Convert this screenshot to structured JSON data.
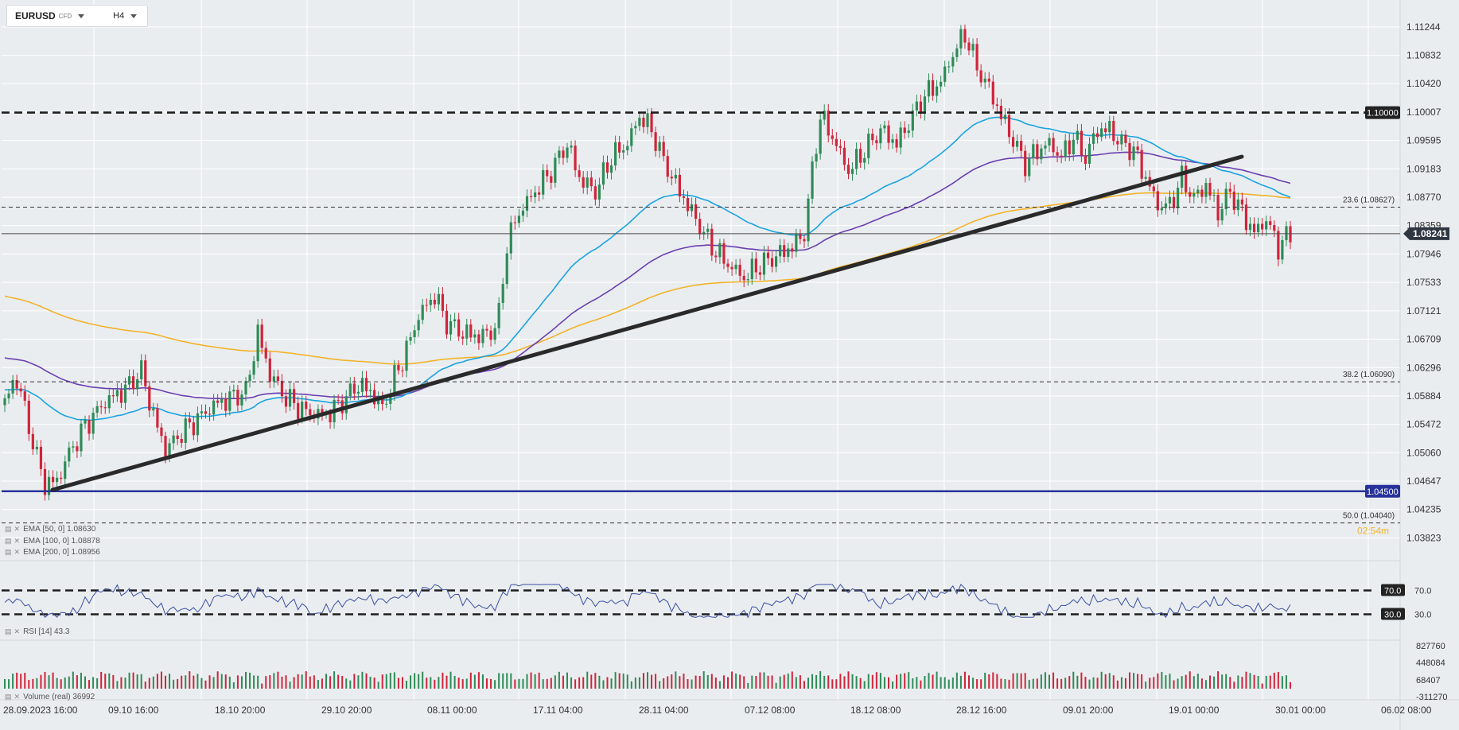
{
  "header": {
    "symbol": "EURUSD",
    "instrument_type": "CFD",
    "timeframe": "H4"
  },
  "colors": {
    "bg": "#eaedf0",
    "up": "#2e8b57",
    "down": "#d0243a",
    "ema50": "#1aa3e0",
    "ema100": "#6a3fb0",
    "ema200": "#f2b32a",
    "trendline": "#2a2a2a",
    "support": "#27329a",
    "rsi": "#3a4fa0"
  },
  "price_axis": {
    "ticks": [
      "1.11244",
      "1.10832",
      "1.10420",
      "1.10007",
      "1.09595",
      "1.09183",
      "1.08770",
      "1.08359",
      "1.07946",
      "1.07533",
      "1.07121",
      "1.06709",
      "1.06296",
      "1.05884",
      "1.05472",
      "1.05060",
      "1.04647",
      "1.04235",
      "1.03823"
    ],
    "current_price": "1.08241",
    "range": [
      1.0355,
      1.1152
    ]
  },
  "levels": [
    {
      "label": "1.10000",
      "value": 1.1,
      "style": "bold-dashed"
    },
    {
      "label": "23.6 (1.08627)",
      "value": 1.08627,
      "style": "thin-dashed"
    },
    {
      "label": "38.2 (1.06090)",
      "value": 1.0609,
      "style": "thin-dashed"
    },
    {
      "label": "50.0 (1.04040)",
      "value": 1.0404,
      "style": "thin-dashed"
    },
    {
      "label": "1.04500",
      "value": 1.045,
      "style": "solid-blue"
    }
  ],
  "countdown": "02:54m",
  "trendline": {
    "from": [
      "28.09.2023 16:00",
      1.0452
    ],
    "to": [
      "25.01 12:00",
      1.0936
    ]
  },
  "time_axis": [
    "28.09.2023  16:00",
    "09.10  16:00",
    "18.10  20:00",
    "29.10  20:00",
    "08.11  00:00",
    "17.11  04:00",
    "28.11  04:00",
    "07.12  08:00",
    "18.12  08:00",
    "28.12  16:00",
    "09.01  20:00",
    "19.01  00:00",
    "30.01  00:00",
    "06.02  08:00"
  ],
  "indicators": {
    "ema": [
      {
        "label": "EMA",
        "params": "[50, 0]",
        "value": "1.08630"
      },
      {
        "label": "EMA",
        "params": "[100, 0]",
        "value": "1.08878"
      },
      {
        "label": "EMA",
        "params": "[200, 0]",
        "value": "1.08956"
      }
    ],
    "rsi": {
      "label": "RSI",
      "params": "[14]",
      "value": "43.3",
      "levels": [
        "70.0",
        "30.0"
      ]
    },
    "volume": {
      "label": "Volume",
      "params": "(real)",
      "value": "36992",
      "ticks": [
        "827760",
        "448084",
        "68407",
        "-311270"
      ]
    }
  },
  "chart_data": {
    "type": "candlestick",
    "symbol": "EURUSD",
    "timeframe": "H4",
    "x_labels": [
      "28.09.2023 16:00",
      "09.10 16:00",
      "18.10 20:00",
      "29.10 20:00",
      "08.11 00:00",
      "17.11 04:00",
      "28.11 04:00",
      "07.12 08:00",
      "18.12 08:00",
      "28.12 16:00",
      "09.01 20:00",
      "19.01 00:00",
      "30.01 00:00",
      "06.02 08:00"
    ],
    "ylim": [
      1.0355,
      1.1152
    ],
    "close_path": [
      [
        0,
        1.058
      ],
      [
        3,
        1.0615
      ],
      [
        7,
        1.052
      ],
      [
        10,
        1.046
      ],
      [
        13,
        1.0465
      ],
      [
        16,
        1.0505
      ],
      [
        20,
        1.0545
      ],
      [
        25,
        1.058
      ],
      [
        30,
        1.0598
      ],
      [
        34,
        1.0625
      ],
      [
        37,
        1.056
      ],
      [
        40,
        1.051
      ],
      [
        44,
        1.0535
      ],
      [
        48,
        1.0555
      ],
      [
        52,
        1.0575
      ],
      [
        56,
        1.0585
      ],
      [
        60,
        1.0595
      ],
      [
        63,
        1.068
      ],
      [
        66,
        1.062
      ],
      [
        70,
        1.0585
      ],
      [
        75,
        1.0565
      ],
      [
        80,
        1.056
      ],
      [
        84,
        1.058
      ],
      [
        88,
        1.0605
      ],
      [
        91,
        1.0595
      ],
      [
        94,
        1.057
      ],
      [
        97,
        1.0615
      ],
      [
        100,
        1.0655
      ],
      [
        103,
        1.0705
      ],
      [
        107,
        1.0735
      ],
      [
        110,
        1.0695
      ],
      [
        114,
        1.068
      ],
      [
        118,
        1.0675
      ],
      [
        121,
        1.068
      ],
      [
        123,
        1.0705
      ],
      [
        125,
        1.081
      ],
      [
        128,
        1.0855
      ],
      [
        132,
        1.0885
      ],
      [
        136,
        1.0915
      ],
      [
        140,
        1.0955
      ],
      [
        143,
        1.0905
      ],
      [
        147,
        1.0885
      ],
      [
        151,
        1.0935
      ],
      [
        155,
        1.0955
      ],
      [
        158,
        1.0995
      ],
      [
        161,
        1.0975
      ],
      [
        164,
        1.093
      ],
      [
        168,
        1.0885
      ],
      [
        172,
        1.0845
      ],
      [
        176,
        1.0805
      ],
      [
        180,
        1.078
      ],
      [
        184,
        1.076
      ],
      [
        187,
        1.0775
      ],
      [
        190,
        1.0785
      ],
      [
        193,
        1.0795
      ],
      [
        196,
        1.0805
      ],
      [
        199,
        1.0825
      ],
      [
        201,
        1.0915
      ],
      [
        203,
        1.0995
      ],
      [
        206,
        1.0965
      ],
      [
        210,
        1.0915
      ],
      [
        214,
        1.0945
      ],
      [
        218,
        1.0975
      ],
      [
        222,
        1.0955
      ],
      [
        225,
        1.0985
      ],
      [
        229,
        1.1025
      ],
      [
        233,
        1.1045
      ],
      [
        236,
        1.1085
      ],
      [
        239,
        1.1115
      ],
      [
        242,
        1.1065
      ],
      [
        245,
        1.1035
      ],
      [
        248,
        1.0995
      ],
      [
        251,
        1.096
      ],
      [
        254,
        1.0925
      ],
      [
        257,
        1.0945
      ],
      [
        260,
        1.0955
      ],
      [
        263,
        1.0935
      ],
      [
        266,
        1.0965
      ],
      [
        269,
        1.0935
      ],
      [
        272,
        1.0975
      ],
      [
        275,
        1.0975
      ],
      [
        278,
        1.0955
      ],
      [
        281,
        1.0945
      ],
      [
        284,
        1.0905
      ],
      [
        287,
        1.0865
      ],
      [
        290,
        1.0865
      ],
      [
        293,
        1.0905
      ],
      [
        296,
        1.0875
      ],
      [
        299,
        1.0895
      ],
      [
        302,
        1.0855
      ],
      [
        305,
        1.0885
      ],
      [
        308,
        1.0855
      ],
      [
        311,
        1.0825
      ],
      [
        314,
        1.0845
      ],
      [
        317,
        1.0805
      ],
      [
        320,
        1.0825
      ]
    ]
  }
}
